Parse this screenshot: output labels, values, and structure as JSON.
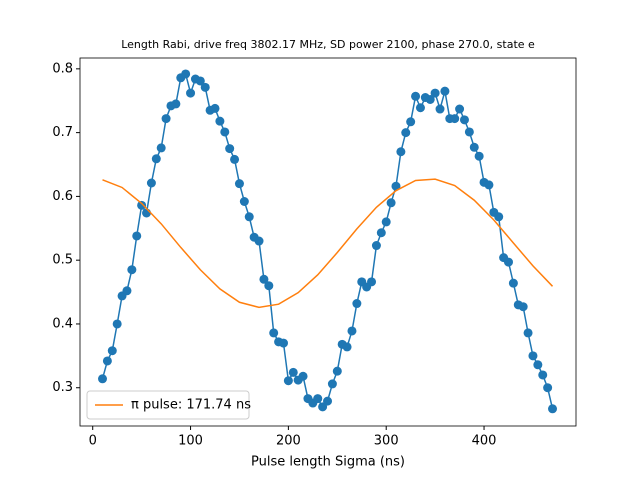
{
  "chart_data": {
    "type": "line",
    "title": "Length Rabi, drive freq 3802.17 MHz, SD power 2100, phase 270.0, state e",
    "x_label": "Pulse length Sigma (ns)",
    "xlim": [
      -13,
      494
    ],
    "ylim": [
      0.24,
      0.817
    ],
    "xticks": [
      0,
      100,
      200,
      300,
      400
    ],
    "yticks": [
      {
        "value": 0.3,
        "label": "0.3"
      },
      {
        "value": 0.4,
        "label": "0.4"
      },
      {
        "value": 0.5,
        "label": "0.5"
      },
      {
        "value": 0.6,
        "label": "0.6"
      },
      {
        "value": 0.7,
        "label": "0.7"
      },
      {
        "value": 0.8,
        "label": "0.8"
      }
    ],
    "grid": false,
    "legend": "lower left",
    "series": [
      {
        "color": "#1f77b4",
        "markers": true,
        "x": [
          10,
          15,
          20,
          25,
          30,
          35,
          40,
          45,
          50,
          55,
          60,
          65,
          70,
          75,
          80,
          85,
          90,
          95,
          100,
          105,
          110,
          115,
          120,
          125,
          130,
          135,
          140,
          145,
          150,
          155,
          160,
          165,
          170,
          175,
          180,
          185,
          190,
          195,
          200,
          205,
          210,
          215,
          220,
          225,
          230,
          235,
          240,
          245,
          250,
          255,
          260,
          265,
          270,
          275,
          280,
          285,
          290,
          295,
          300,
          305,
          310,
          315,
          320,
          325,
          330,
          335,
          340,
          345,
          350,
          355,
          360,
          365,
          370,
          375,
          380,
          385,
          390,
          395,
          400,
          405,
          410,
          415,
          420,
          425,
          430,
          435,
          440,
          445,
          450,
          455,
          460,
          465,
          470
        ],
        "values": [
          0.314,
          0.342,
          0.358,
          0.4,
          0.444,
          0.452,
          0.485,
          0.538,
          0.586,
          0.574,
          0.621,
          0.659,
          0.676,
          0.722,
          0.742,
          0.745,
          0.786,
          0.792,
          0.762,
          0.784,
          0.781,
          0.771,
          0.735,
          0.738,
          0.718,
          0.701,
          0.675,
          0.658,
          0.62,
          0.592,
          0.568,
          0.536,
          0.53,
          0.47,
          0.46,
          0.386,
          0.372,
          0.37,
          0.311,
          0.324,
          0.312,
          0.318,
          0.283,
          0.276,
          0.283,
          0.27,
          0.279,
          0.306,
          0.326,
          0.368,
          0.364,
          0.389,
          0.432,
          0.466,
          0.458,
          0.466,
          0.523,
          0.543,
          0.56,
          0.59,
          0.616,
          0.67,
          0.7,
          0.717,
          0.757,
          0.739,
          0.755,
          0.752,
          0.762,
          0.737,
          0.765,
          0.722,
          0.722,
          0.737,
          0.72,
          0.701,
          0.677,
          0.663,
          0.622,
          0.618,
          0.575,
          0.568,
          0.504,
          0.497,
          0.464,
          0.43,
          0.427,
          0.386,
          0.35,
          0.336,
          0.32,
          0.3,
          0.267
        ]
      },
      {
        "name": "π pulse: 171.74 ns",
        "color": "#ff7f0e",
        "markers": false,
        "x": [
          10,
          30,
          50,
          70,
          90,
          110,
          130,
          150,
          170,
          190,
          210,
          230,
          250,
          270,
          290,
          310,
          330,
          350,
          370,
          390,
          410,
          430,
          450,
          470
        ],
        "values": [
          0.626,
          0.614,
          0.589,
          0.557,
          0.52,
          0.485,
          0.455,
          0.434,
          0.426,
          0.431,
          0.449,
          0.477,
          0.512,
          0.549,
          0.583,
          0.609,
          0.625,
          0.627,
          0.617,
          0.594,
          0.563,
          0.527,
          0.491,
          0.459
        ]
      }
    ]
  }
}
